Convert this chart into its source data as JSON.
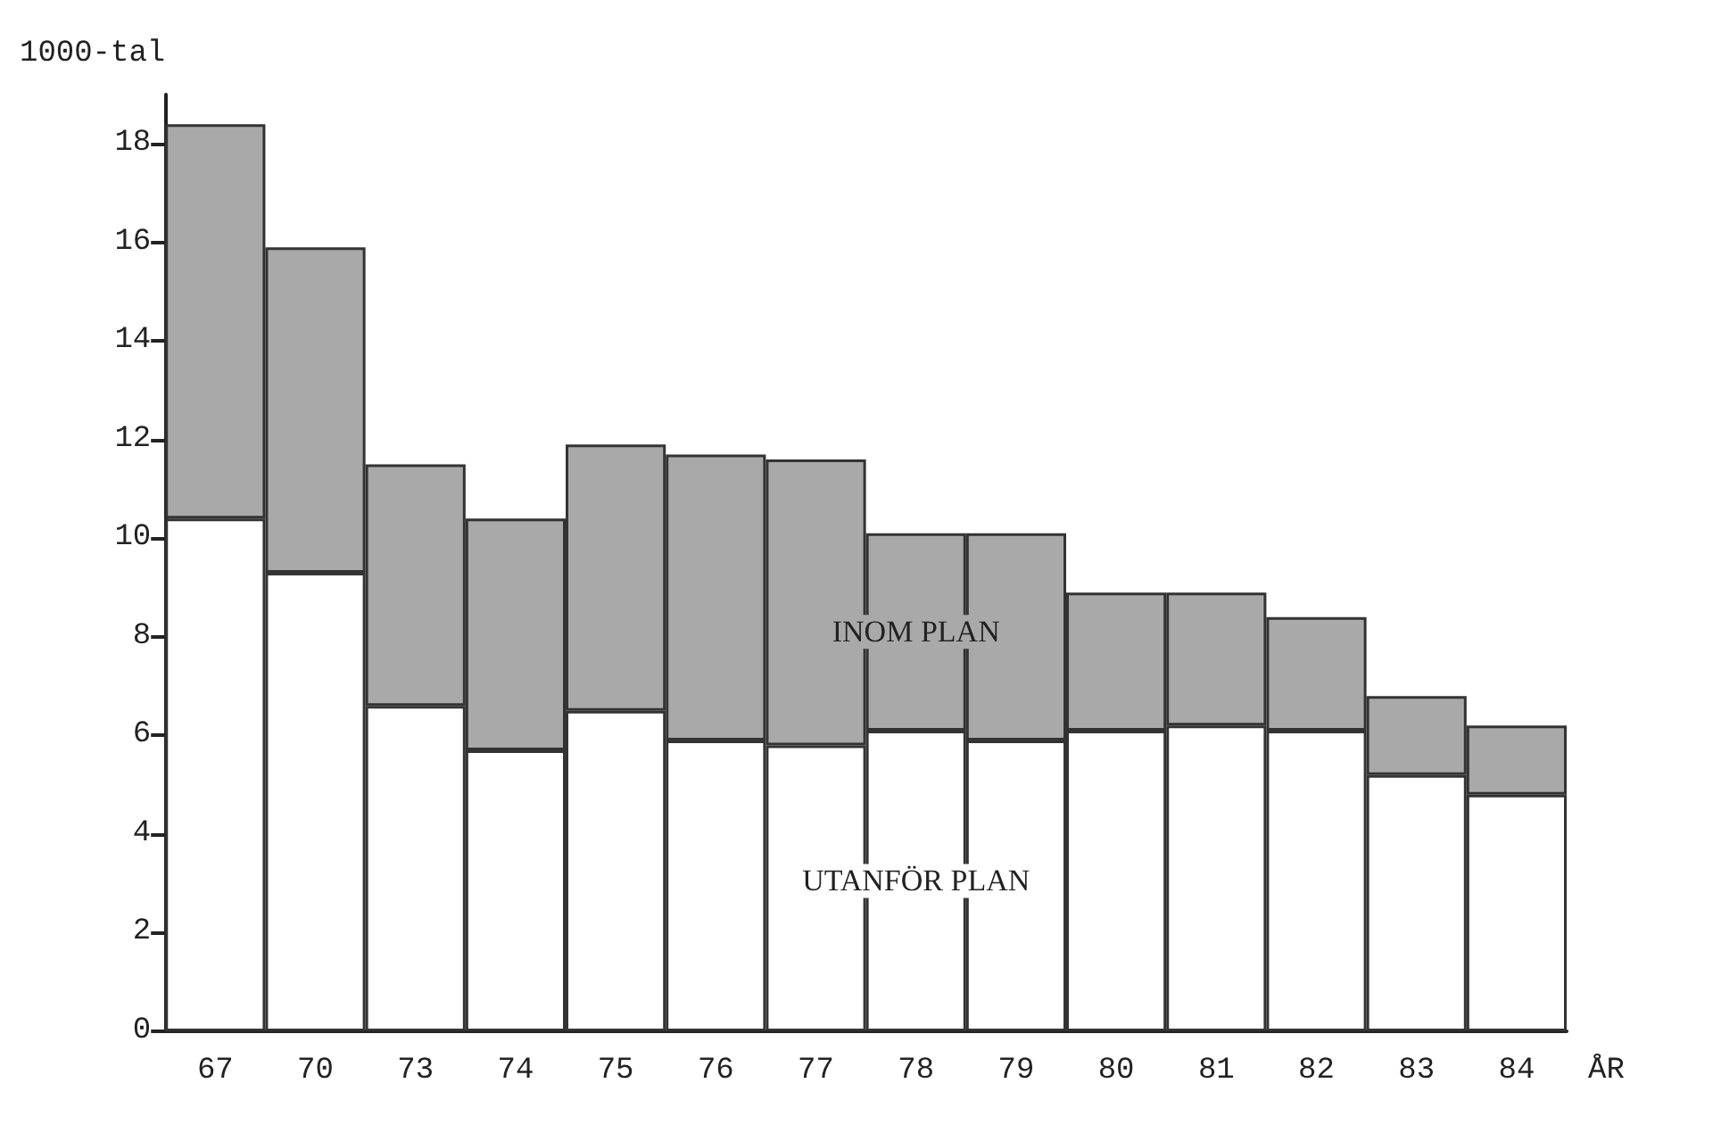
{
  "chart_data": {
    "type": "bar",
    "stacked": true,
    "ylabel": "1000-tal",
    "xlabel": "ÅR",
    "categories": [
      "67",
      "70",
      "73",
      "74",
      "75",
      "76",
      "77",
      "78",
      "79",
      "80",
      "81",
      "82",
      "83",
      "84"
    ],
    "series": [
      {
        "name": "UTANFÖR PLAN",
        "color": "#ffffff",
        "values": [
          10.4,
          9.3,
          6.6,
          5.7,
          6.5,
          5.9,
          5.8,
          6.1,
          5.9,
          6.1,
          6.2,
          6.1,
          5.2,
          4.8
        ]
      },
      {
        "name": "INOM PLAN",
        "color": "#a9a9a9",
        "values": [
          8.0,
          6.6,
          4.9,
          4.7,
          5.4,
          5.8,
          5.8,
          4.0,
          4.2,
          2.8,
          2.7,
          2.3,
          1.6,
          1.4
        ]
      }
    ],
    "ylim": [
      0,
      19
    ],
    "yticks": [
      0,
      2,
      4,
      6,
      8,
      10,
      12,
      14,
      16,
      18
    ],
    "grid": false,
    "legend": false
  }
}
